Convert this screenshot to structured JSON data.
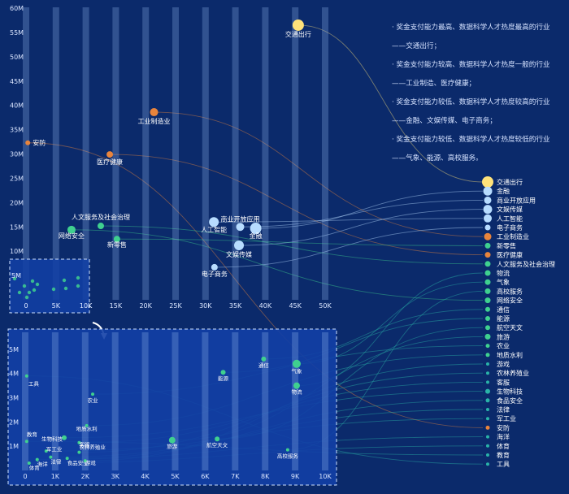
{
  "annotations": [
    "· 奖金支付能力最高、数据科学人才热度最高的行业",
    "——交通出行；",
    "· 奖金支付能力较高、数据科学人才热度一般的行业",
    "——工业制造、医疗健康；",
    "· 奖金支付能力较低、数据科学人才热度较高的行业",
    "——金融、文娱传媒、电子商务；",
    "· 奖金支付能力较低、数据科学人才热度较低的行业",
    "——气象、能源、高校服务。"
  ],
  "colors": {
    "background": "#0b2a6b",
    "zoom_panel": "#123fa6",
    "yellow": "#ffe27a",
    "orange": "#e8843c",
    "blue": "#b7dcff",
    "green": "#3fd08f",
    "teal": "#2ab3a8"
  },
  "chart_data": [
    {
      "type": "scatter",
      "name": "main",
      "x_ticks": [
        "0",
        "5K",
        "10K",
        "15K",
        "20K",
        "25K",
        "30K",
        "35K",
        "40K",
        "45K",
        "50K"
      ],
      "y_ticks": [
        "5M",
        "10M",
        "15M",
        "20M",
        "25M",
        "30M",
        "35M",
        "40M",
        "45M",
        "50M",
        "55M",
        "60M"
      ],
      "xlim": [
        0,
        50000
      ],
      "ylim": [
        0,
        60000000
      ],
      "points": [
        {
          "label": "交通出行",
          "x": 45500,
          "y": 56500000,
          "color": "yellow",
          "size": 7
        },
        {
          "label": "工业制造业",
          "x": 21400,
          "y": 38600000,
          "color": "orange",
          "size": 5
        },
        {
          "label": "安防",
          "x": 300,
          "y": 32300000,
          "color": "orange",
          "size": 3
        },
        {
          "label": "医疗健康",
          "x": 14000,
          "y": 29900000,
          "color": "orange",
          "size": 4
        },
        {
          "label": "商业开放应用",
          "x": 35800,
          "y": 15000000,
          "color": "blue",
          "size": 5
        },
        {
          "label": "人工智能",
          "x": 31400,
          "y": 16000000,
          "color": "blue",
          "size": 6
        },
        {
          "label": "金融",
          "x": 38400,
          "y": 14700000,
          "color": "blue",
          "size": 7
        },
        {
          "label": "文娱传媒",
          "x": 35600,
          "y": 11200000,
          "color": "blue",
          "size": 6
        },
        {
          "label": "电子商务",
          "x": 31500,
          "y": 6700000,
          "color": "blue",
          "size": 4
        },
        {
          "label": "人文服务及社会治理",
          "x": 12500,
          "y": 15200000,
          "color": "green",
          "size": 4
        },
        {
          "label": "网络安全",
          "x": 7600,
          "y": 14400000,
          "color": "green",
          "size": 5
        },
        {
          "label": "新零售",
          "x": 15200,
          "y": 12500000,
          "color": "green",
          "size": 4
        }
      ]
    },
    {
      "type": "scatter",
      "name": "zoom",
      "x_ticks": [
        "0",
        "1K",
        "2K",
        "3K",
        "4K",
        "5K",
        "6K",
        "7K",
        "8K",
        "9K",
        "10K"
      ],
      "y_ticks": [
        "1M",
        "2M",
        "3M",
        "4M",
        "5M"
      ],
      "xlim": [
        0,
        10000
      ],
      "ylim": [
        0,
        5500000
      ],
      "points": [
        {
          "label": "工具",
          "x": 50,
          "y": 3900000,
          "size": 2
        },
        {
          "label": "教育",
          "x": 50,
          "y": 1200000,
          "size": 2
        },
        {
          "label": "体育",
          "x": 130,
          "y": 300000,
          "size": 2
        },
        {
          "label": "海洋",
          "x": 400,
          "y": 450000,
          "size": 2
        },
        {
          "label": "军工业",
          "x": 700,
          "y": 800000,
          "size": 2
        },
        {
          "label": "法律",
          "x": 850,
          "y": 550000,
          "size": 2
        },
        {
          "label": "食品安全",
          "x": 1400,
          "y": 500000,
          "size": 2
        },
        {
          "label": "生物科技",
          "x": 1300,
          "y": 1350000,
          "size": 3
        },
        {
          "label": "客服",
          "x": 1800,
          "y": 1150000,
          "size": 2
        },
        {
          "label": "农林养殖业",
          "x": 1800,
          "y": 750000,
          "size": 2
        },
        {
          "label": "游戏",
          "x": 2000,
          "y": 400000,
          "size": 2
        },
        {
          "label": "地质水利",
          "x": 2050,
          "y": 1850000,
          "size": 2
        },
        {
          "label": "农业",
          "x": 2250,
          "y": 3150000,
          "size": 2
        },
        {
          "label": "旅游",
          "x": 4900,
          "y": 1250000,
          "size": 4
        },
        {
          "label": "航空天文",
          "x": 6400,
          "y": 1300000,
          "size": 3
        },
        {
          "label": "能源",
          "x": 6600,
          "y": 4050000,
          "size": 3
        },
        {
          "label": "通信",
          "x": 7950,
          "y": 4600000,
          "size": 3
        },
        {
          "label": "气象",
          "x": 9050,
          "y": 4400000,
          "size": 5
        },
        {
          "label": "物流",
          "x": 9050,
          "y": 3500000,
          "size": 4
        },
        {
          "label": "高校服务",
          "x": 8750,
          "y": 850000,
          "size": 2
        }
      ]
    }
  ],
  "legend": [
    {
      "label": "交通出行",
      "color": "yellow",
      "size": 7
    },
    {
      "label": "金融",
      "color": "blue",
      "size": 5.5
    },
    {
      "label": "商业开放应用",
      "color": "blue",
      "size": 4.5
    },
    {
      "label": "文娱传媒",
      "color": "blue",
      "size": 5.5
    },
    {
      "label": "人工智能",
      "color": "blue",
      "size": 5
    },
    {
      "label": "电子商务",
      "color": "blue",
      "size": 3.5
    },
    {
      "label": "工业制造业",
      "color": "orange",
      "size": 4.5
    },
    {
      "label": "新零售",
      "color": "green",
      "size": 3.5
    },
    {
      "label": "医疗健康",
      "color": "orange",
      "size": 3.5
    },
    {
      "label": "人文服务及社会治理",
      "color": "green",
      "size": 3.5
    },
    {
      "label": "物流",
      "color": "green",
      "size": 3.5
    },
    {
      "label": "气象",
      "color": "green",
      "size": 3.5
    },
    {
      "label": "高校服务",
      "color": "green",
      "size": 3.5
    },
    {
      "label": "网络安全",
      "color": "green",
      "size": 3.5
    },
    {
      "label": "通信",
      "color": "green",
      "size": 3
    },
    {
      "label": "能源",
      "color": "green",
      "size": 3
    },
    {
      "label": "航空天文",
      "color": "green",
      "size": 3
    },
    {
      "label": "旅游",
      "color": "green",
      "size": 3.5
    },
    {
      "label": "农业",
      "color": "green",
      "size": 2.5
    },
    {
      "label": "地质水利",
      "color": "green",
      "size": 2.5
    },
    {
      "label": "游戏",
      "color": "teal",
      "size": 2
    },
    {
      "label": "农林养殖业",
      "color": "teal",
      "size": 2
    },
    {
      "label": "客服",
      "color": "teal",
      "size": 2
    },
    {
      "label": "生物科技",
      "color": "teal",
      "size": 3
    },
    {
      "label": "食品安全",
      "color": "teal",
      "size": 2.5
    },
    {
      "label": "法律",
      "color": "teal",
      "size": 2
    },
    {
      "label": "军工业",
      "color": "teal",
      "size": 2
    },
    {
      "label": "安防",
      "color": "orange",
      "size": 2.5
    },
    {
      "label": "海洋",
      "color": "teal",
      "size": 2
    },
    {
      "label": "体育",
      "color": "teal",
      "size": 2
    },
    {
      "label": "教育",
      "color": "teal",
      "size": 2
    },
    {
      "label": "工具",
      "color": "teal",
      "size": 2
    }
  ]
}
